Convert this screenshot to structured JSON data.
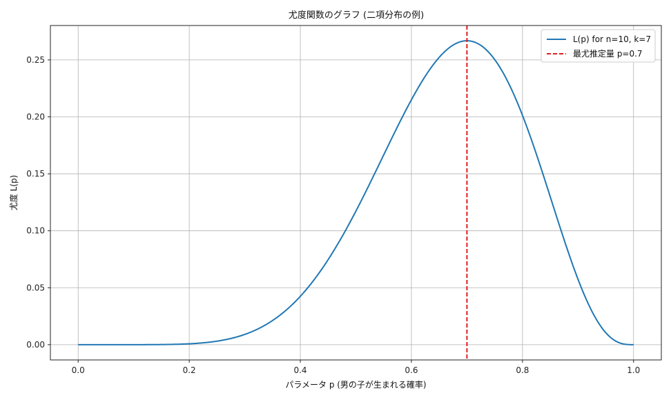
{
  "chart_data": {
    "type": "line",
    "title": "尤度関数のグラフ (二項分布の例)",
    "xlabel": "パラメータ p (男の子が生まれる確率)",
    "ylabel": "尤度 L(p)",
    "xlim": [
      -0.05,
      1.05
    ],
    "ylim": [
      -0.0134,
      0.2802
    ],
    "xticks": [
      0.0,
      0.2,
      0.4,
      0.6,
      0.8,
      1.0
    ],
    "xtick_labels": [
      "0.0",
      "0.2",
      "0.4",
      "0.6",
      "0.8",
      "1.0"
    ],
    "yticks": [
      0.0,
      0.05,
      0.1,
      0.15,
      0.2,
      0.25
    ],
    "ytick_labels": [
      "0.00",
      "0.05",
      "0.10",
      "0.15",
      "0.20",
      "0.25"
    ],
    "grid": true,
    "legend_position": "top-right",
    "series": [
      {
        "name": "L(p) for n=10, k=7",
        "color": "#1f77b4",
        "style": "solid",
        "x": [
          0.0,
          0.05,
          0.1,
          0.15,
          0.2,
          0.25,
          0.3,
          0.35,
          0.4,
          0.45,
          0.5,
          0.55,
          0.6,
          0.65,
          0.7,
          0.75,
          0.8,
          0.85,
          0.9,
          0.95,
          1.0
        ],
        "y": [
          0.0,
          8e-07,
          8.7e-06,
          0.0001,
          0.0008,
          0.0031,
          0.009,
          0.0212,
          0.0425,
          0.0746,
          0.1172,
          0.1665,
          0.215,
          0.2522,
          0.2668,
          0.2503,
          0.2013,
          0.1298,
          0.0574,
          0.0105,
          0.0
        ]
      }
    ],
    "vlines": [
      {
        "name": "最尤推定量 p=0.7",
        "x": 0.7,
        "color": "#e41a1c",
        "style": "dashed"
      }
    ]
  }
}
